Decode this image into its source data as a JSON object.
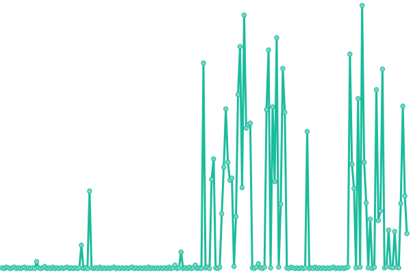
{
  "chart_data": {
    "type": "line",
    "title": "",
    "xlabel": "",
    "ylabel": "",
    "grid": false,
    "legend": "none",
    "markers": true,
    "colors": {
      "line": "#1abc9c",
      "marker_fill": "#76d7c4"
    },
    "ylim": [
      0,
      385
    ],
    "series": [
      {
        "values": [
          2,
          1,
          3,
          2,
          1,
          2,
          3,
          1,
          2,
          1,
          2,
          3,
          1,
          2,
          1,
          2,
          1,
          11,
          2,
          1,
          2,
          4,
          1,
          2,
          1,
          3,
          1,
          2,
          1,
          2,
          1,
          2,
          3,
          1,
          2,
          1,
          2,
          1,
          2,
          35,
          1,
          2,
          1,
          114,
          2,
          1,
          2,
          1,
          3,
          1,
          2,
          1,
          2,
          1,
          2,
          3,
          1,
          2,
          1,
          2,
          1,
          2,
          1,
          2,
          3,
          1,
          2,
          1,
          2,
          1,
          2,
          1,
          3,
          1,
          2,
          1,
          2,
          1,
          2,
          1,
          2,
          1,
          3,
          1,
          2,
          6,
          1,
          2,
          25,
          1,
          2,
          1,
          3,
          1,
          2,
          6,
          1,
          2,
          1,
          301,
          2,
          3,
          1,
          131,
          161,
          2,
          1,
          3,
          81,
          149,
          234,
          156,
          130,
          133,
          4,
          77,
          255,
          325,
          119,
          371,
          206,
          211,
          213,
          2,
          1,
          3,
          8,
          2,
          1,
          3,
          233,
          320,
          2,
          237,
          128,
          338,
          3,
          95,
          293,
          229,
          2,
          1,
          3,
          2,
          1,
          2,
          1,
          2,
          1,
          2,
          201,
          1,
          2,
          1,
          3,
          1,
          2,
          1,
          2,
          1,
          2,
          1,
          2,
          3,
          1,
          2,
          1,
          2,
          1,
          2,
          3,
          314,
          153,
          118,
          2,
          249,
          3,
          385,
          156,
          97,
          2,
          73,
          1,
          3,
          262,
          71,
          85,
          292,
          2,
          4,
          57,
          3,
          2,
          55,
          3,
          2,
          96,
          238,
          107,
          52
        ]
      }
    ]
  }
}
